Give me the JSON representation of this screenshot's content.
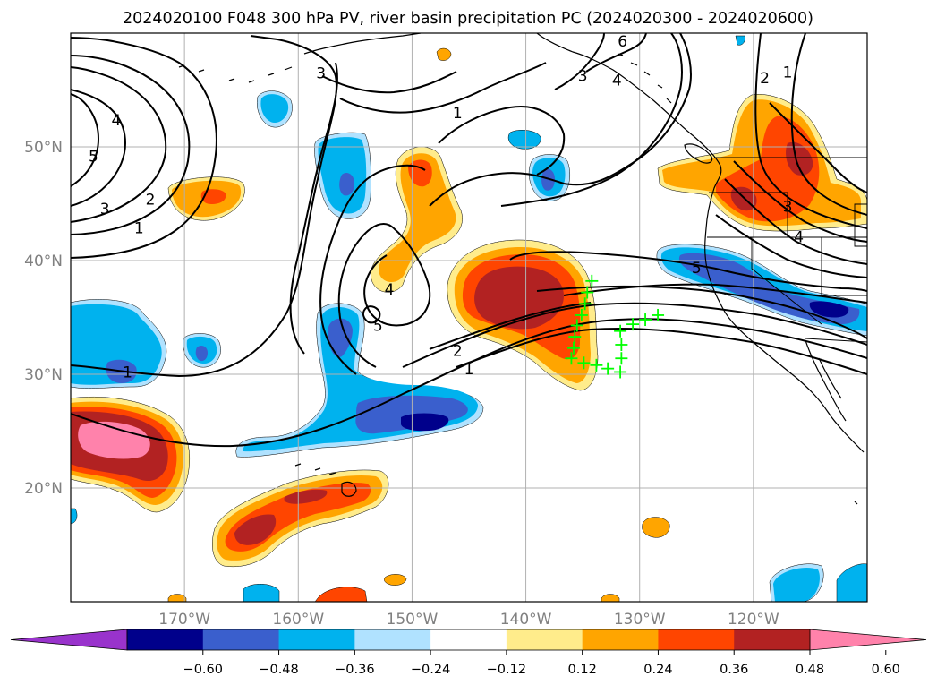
{
  "title": "2024020100 F048 300 hPa PV, river basin precipitation PC (2024020300 - 2024020600)",
  "map": {
    "lon_labels": [
      "170°W",
      "160°W",
      "150°W",
      "140°W",
      "130°W",
      "120°W"
    ],
    "lat_labels": [
      "50°N",
      "40°N",
      "30°N",
      "20°N"
    ],
    "grid_lons": [
      -170,
      -160,
      -150,
      -140,
      -130,
      -120
    ],
    "grid_lats": [
      50,
      40,
      30,
      20
    ],
    "lon_range": [
      -180,
      -110
    ],
    "lat_range": [
      10,
      60
    ],
    "pv_contour_labels": [
      {
        "text": "4",
        "lon": -176,
        "lat": 52.3
      },
      {
        "text": "5",
        "lon": -178,
        "lat": 49.1
      },
      {
        "text": "3",
        "lon": -177,
        "lat": 44.5
      },
      {
        "text": "2",
        "lon": -173,
        "lat": 45.3
      },
      {
        "text": "1",
        "lon": -174,
        "lat": 42.8
      },
      {
        "text": "1",
        "lon": -175,
        "lat": 30.1
      },
      {
        "text": "3",
        "lon": -158,
        "lat": 56.4
      },
      {
        "text": "1",
        "lon": -146,
        "lat": 52.9
      },
      {
        "text": "3",
        "lon": -135,
        "lat": 56.2
      },
      {
        "text": "4",
        "lon": -132,
        "lat": 55.8
      },
      {
        "text": "6",
        "lon": -131.5,
        "lat": 59.2
      },
      {
        "text": "4",
        "lon": -152,
        "lat": 37.4
      },
      {
        "text": "5",
        "lon": -153,
        "lat": 34.2
      },
      {
        "text": "2",
        "lon": -146,
        "lat": 32.0
      },
      {
        "text": "1",
        "lon": -145,
        "lat": 30.4
      },
      {
        "text": "5",
        "lon": -125,
        "lat": 39.3
      },
      {
        "text": "2",
        "lon": -119,
        "lat": 56.0
      },
      {
        "text": "1",
        "lon": -117,
        "lat": 56.5
      },
      {
        "text": "3",
        "lon": -117,
        "lat": 44.7
      },
      {
        "text": "4",
        "lon": -116,
        "lat": 42.0
      }
    ],
    "basin_points": [
      [
        -134.2,
        38.2
      ],
      [
        -134.6,
        37.2
      ],
      [
        -134.8,
        36.2
      ],
      [
        -135.1,
        35.2
      ],
      [
        -135.5,
        34.3
      ],
      [
        -135.7,
        33.3
      ],
      [
        -135.8,
        32.3
      ],
      [
        -136.0,
        31.4
      ],
      [
        -134.9,
        31.0
      ],
      [
        -133.8,
        30.8
      ],
      [
        -132.8,
        30.5
      ],
      [
        -131.7,
        30.2
      ],
      [
        -131.6,
        31.4
      ],
      [
        -131.6,
        32.6
      ],
      [
        -131.7,
        33.8
      ],
      [
        -130.6,
        34.4
      ],
      [
        -129.5,
        34.8
      ],
      [
        -128.4,
        35.2
      ]
    ],
    "colors": {
      "ocean": "#ffffff",
      "coast": "#000000",
      "grid": "#b0b0b0",
      "basin_marker": "#00ff00",
      "tick_label": "#808080"
    }
  },
  "colorbar": {
    "tick_labels": [
      "−0.60",
      "−0.48",
      "−0.36",
      "−0.24",
      "−0.12",
      "0.12",
      "0.24",
      "0.36",
      "0.48",
      "0.60"
    ],
    "colors": [
      "#9933cc",
      "#00008b",
      "#3a5fcd",
      "#00b2ee",
      "#b0e2ff",
      "#ffffff",
      "#ffec8b",
      "#ffa500",
      "#ff4500",
      "#b22222",
      "#ff82ab"
    ]
  }
}
